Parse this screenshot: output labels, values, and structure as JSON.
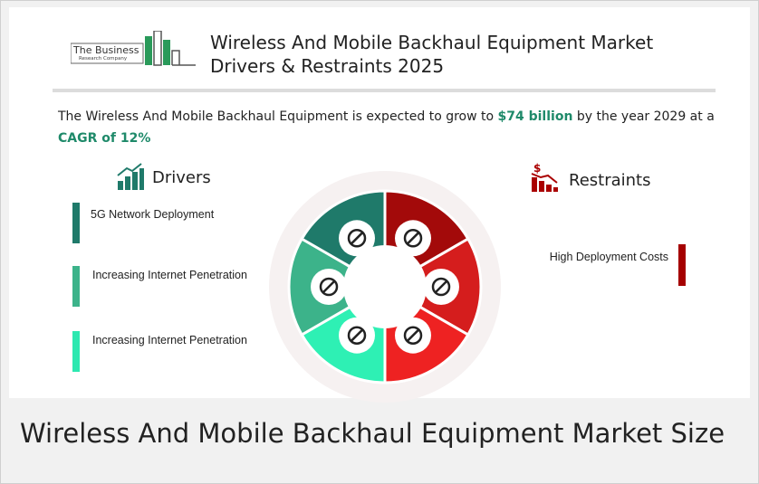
{
  "logo": {
    "line1": "The Business",
    "line2": "Research Company"
  },
  "header": {
    "title_line1": "Wireless And Mobile Backhaul Equipment Market",
    "title_line2": "Drivers & Restraints 2025"
  },
  "summary": {
    "text_before": "The Wireless And Mobile Backhaul Equipment is expected to grow to ",
    "highlight_value": "$74 billion",
    "text_middle": " by the year 2029 at a ",
    "highlight_cagr": "CAGR of  12%"
  },
  "drivers": {
    "heading": "Drivers",
    "items": [
      "5G Network Deployment",
      "Increasing Internet Penetration",
      "Increasing Internet Penetration"
    ]
  },
  "restraints": {
    "heading": "Restraints",
    "items": [
      "High Deployment Costs"
    ]
  },
  "footer_heading": "Wireless And Mobile Backhaul Equipment Market Size"
}
